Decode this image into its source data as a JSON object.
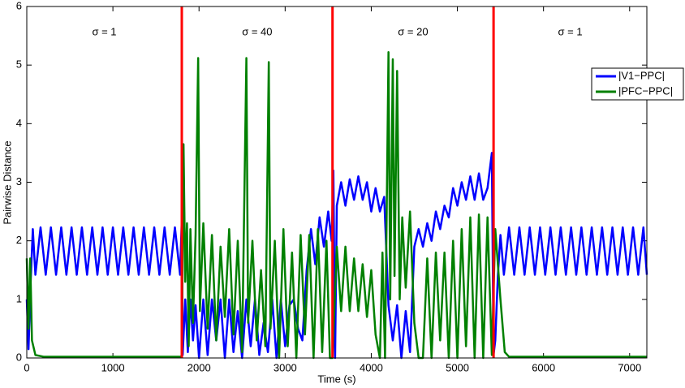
{
  "chart_data": {
    "type": "line",
    "xlabel": "Time (s)",
    "ylabel": "Pairwise Distance",
    "xlim": [
      0,
      7200
    ],
    "xticks": [
      0,
      1000,
      2000,
      3000,
      4000,
      5000,
      6000,
      7000
    ],
    "ylim": [
      0,
      6
    ],
    "yticks": [
      0,
      1,
      2,
      3,
      4,
      5,
      6
    ],
    "vlines": [
      1800,
      3550,
      5420
    ],
    "vline_color": "#ff0000",
    "annotations": [
      "σ = 1",
      "σ = 40",
      "σ = 20",
      "σ = 1"
    ],
    "legend": "upper right",
    "series": [
      {
        "name": "|V1−PPC|",
        "color": "#0000ff",
        "x": [
          0,
          20,
          45,
          70,
          100,
          160,
          220,
          280,
          340,
          400,
          460,
          520,
          580,
          640,
          700,
          760,
          820,
          880,
          940,
          1000,
          1060,
          1120,
          1180,
          1240,
          1300,
          1360,
          1420,
          1480,
          1540,
          1600,
          1660,
          1720,
          1780,
          1800,
          1810,
          1840,
          1870,
          1900,
          1930,
          1960,
          2000,
          2050,
          2100,
          2150,
          2200,
          2250,
          2300,
          2350,
          2400,
          2450,
          2500,
          2550,
          2600,
          2650,
          2700,
          2750,
          2800,
          2850,
          2900,
          2950,
          3000,
          3050,
          3100,
          3150,
          3200,
          3250,
          3300,
          3350,
          3400,
          3450,
          3500,
          3540,
          3560,
          3580,
          3600,
          3650,
          3700,
          3750,
          3800,
          3850,
          3900,
          3950,
          4000,
          4050,
          4100,
          4150,
          4200,
          4250,
          4300,
          4350,
          4400,
          4450,
          4500,
          4550,
          4600,
          4650,
          4700,
          4750,
          4800,
          4850,
          4900,
          4950,
          5000,
          5050,
          5100,
          5150,
          5200,
          5250,
          5300,
          5350,
          5400,
          5420,
          5440,
          5470,
          5500,
          5540,
          5600,
          5660,
          5720,
          5780,
          5840,
          5900,
          5960,
          6020,
          6080,
          6140,
          6200,
          6260,
          6320,
          6380,
          6440,
          6500,
          6560,
          6620,
          6680,
          6740,
          6800,
          6860,
          6920,
          6980,
          7040,
          7100,
          7160,
          7200
        ],
        "values": [
          1.0,
          0.15,
          1.3,
          2.2,
          1.42,
          2.23,
          1.42,
          2.23,
          1.42,
          2.23,
          1.42,
          2.23,
          1.42,
          2.23,
          1.42,
          2.23,
          1.42,
          2.23,
          1.42,
          2.23,
          1.42,
          2.23,
          1.42,
          2.23,
          1.42,
          2.23,
          1.42,
          2.23,
          1.42,
          2.23,
          1.42,
          2.23,
          1.42,
          2.38,
          0.05,
          1.0,
          0.1,
          1.0,
          0.3,
          0.9,
          0.0,
          1.0,
          0.05,
          1.0,
          0.3,
          1.0,
          0.0,
          1.0,
          0.1,
          0.8,
          0.0,
          1.0,
          0.2,
          1.0,
          0.05,
          0.6,
          0.1,
          1.0,
          0.0,
          1.0,
          0.2,
          0.9,
          1.0,
          0.5,
          0.3,
          1.5,
          2.2,
          1.6,
          2.4,
          1.9,
          2.5,
          2.0,
          3.2,
          0.0,
          2.6,
          3.0,
          2.6,
          3.05,
          2.7,
          3.1,
          2.7,
          3.0,
          2.5,
          2.9,
          2.5,
          2.75,
          0.9,
          0.3,
          0.9,
          0.0,
          0.8,
          0.1,
          1.9,
          2.2,
          1.9,
          2.3,
          2.0,
          2.5,
          2.2,
          2.6,
          2.4,
          2.9,
          2.6,
          3.0,
          2.7,
          3.1,
          2.7,
          3.15,
          2.7,
          2.9,
          3.5,
          0.05,
          0.3,
          1.4,
          2.1,
          1.42,
          2.23,
          1.42,
          2.23,
          1.42,
          2.23,
          1.42,
          2.23,
          1.42,
          2.23,
          1.42,
          2.23,
          1.42,
          2.23,
          1.42,
          2.23,
          1.42,
          2.23,
          1.42,
          2.23,
          1.42,
          2.23,
          1.42,
          2.23,
          1.42,
          2.23,
          1.42,
          2.23,
          1.42
        ]
      },
      {
        "name": "|PFC−PPC|",
        "color": "#008000",
        "x": [
          0,
          20,
          40,
          60,
          100,
          200,
          1700,
          1790,
          1800,
          1820,
          1840,
          1860,
          1880,
          1900,
          1930,
          1960,
          1990,
          2010,
          2050,
          2100,
          2150,
          2200,
          2250,
          2300,
          2350,
          2400,
          2450,
          2500,
          2550,
          2570,
          2620,
          2670,
          2720,
          2770,
          2810,
          2830,
          2880,
          2930,
          2980,
          3030,
          3080,
          3130,
          3180,
          3230,
          3280,
          3330,
          3380,
          3430,
          3480,
          3520,
          3550,
          3600,
          3650,
          3700,
          3750,
          3800,
          3850,
          3900,
          3950,
          4000,
          4050,
          4100,
          4130,
          4160,
          4200,
          4220,
          4250,
          4270,
          4300,
          4330,
          4360,
          4400,
          4450,
          4500,
          4550,
          4600,
          4650,
          4700,
          4750,
          4800,
          4850,
          4900,
          4950,
          5000,
          5050,
          5100,
          5150,
          5200,
          5250,
          5300,
          5350,
          5400,
          5440,
          5500,
          5550,
          5600,
          7200
        ],
        "values": [
          1.7,
          0.5,
          1.7,
          0.3,
          0.05,
          0.02,
          0.02,
          0.02,
          0.05,
          3.65,
          1.3,
          2.3,
          0.2,
          2.2,
          0.6,
          2.1,
          5.12,
          0.8,
          2.3,
          0.5,
          2.1,
          0.3,
          1.9,
          0.7,
          2.2,
          0.4,
          2.0,
          0.1,
          5.12,
          0.6,
          2.0,
          0.3,
          1.5,
          0.2,
          5.05,
          0.5,
          2.0,
          0.0,
          2.2,
          0.2,
          1.8,
          0.0,
          2.1,
          0.4,
          2.1,
          0.0,
          2.2,
          0.1,
          2.0,
          0.0,
          0.0,
          1.9,
          0.8,
          1.9,
          0.8,
          1.7,
          0.8,
          1.6,
          0.7,
          1.5,
          0.4,
          0.0,
          1.8,
          0.0,
          5.22,
          1.0,
          5.1,
          1.4,
          4.9,
          1.0,
          2.4,
          1.2,
          2.5,
          0.6,
          0.0,
          0.0,
          1.7,
          0.0,
          1.8,
          0.3,
          1.8,
          0.0,
          2.0,
          0.0,
          2.2,
          0.2,
          2.4,
          0.0,
          2.45,
          0.0,
          2.4,
          0.05,
          2.2,
          1.0,
          0.1,
          0.02,
          0.02
        ]
      }
    ]
  }
}
